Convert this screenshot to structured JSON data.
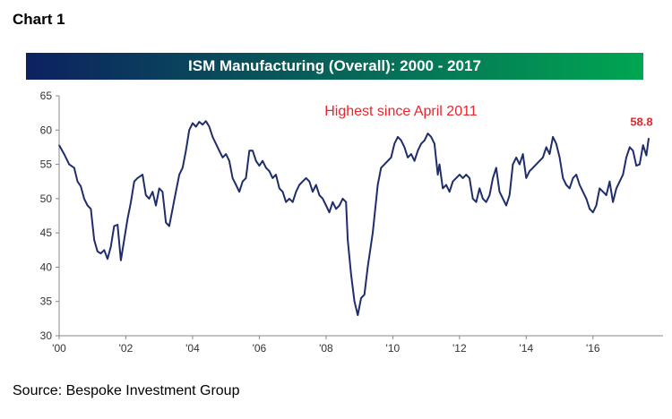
{
  "header": {
    "chart_label": "Chart 1"
  },
  "footer": {
    "source": "Source: Bespoke Investment Group"
  },
  "colors": {
    "title_bar_start": "#0d2160",
    "title_bar_end": "#00a651",
    "line": "#1f2d6b",
    "annotation": "#e8262b",
    "axis": "#888888"
  },
  "chart_data": {
    "type": "line",
    "title": "ISM Manufacturing (Overall): 2000 - 2017",
    "xlabel": "",
    "ylabel": "",
    "ylim": [
      30,
      65
    ],
    "xlim": [
      2000,
      2018.1
    ],
    "y_ticks": [
      30,
      35,
      40,
      45,
      50,
      55,
      60,
      65
    ],
    "x_ticks": [
      {
        "x": 2000,
        "label": "'00"
      },
      {
        "x": 2002,
        "label": "'02"
      },
      {
        "x": 2004,
        "label": "'04"
      },
      {
        "x": 2006,
        "label": "'06"
      },
      {
        "x": 2008,
        "label": "'08"
      },
      {
        "x": 2010,
        "label": "'10"
      },
      {
        "x": 2012,
        "label": "'12"
      },
      {
        "x": 2014,
        "label": "'14"
      },
      {
        "x": 2016,
        "label": "'16"
      }
    ],
    "grid": false,
    "series": [
      {
        "points": [
          [
            2000.0,
            57.8
          ],
          [
            2000.15,
            56.5
          ],
          [
            2000.3,
            55.0
          ],
          [
            2000.45,
            54.5
          ],
          [
            2000.55,
            52.5
          ],
          [
            2000.65,
            51.8
          ],
          [
            2000.75,
            50.0
          ],
          [
            2000.85,
            49.0
          ],
          [
            2000.95,
            48.5
          ],
          [
            2001.05,
            44.0
          ],
          [
            2001.15,
            42.3
          ],
          [
            2001.25,
            42.0
          ],
          [
            2001.35,
            42.5
          ],
          [
            2001.45,
            41.2
          ],
          [
            2001.55,
            43.0
          ],
          [
            2001.65,
            46.0
          ],
          [
            2001.75,
            46.2
          ],
          [
            2001.85,
            41.0
          ],
          [
            2001.95,
            44.0
          ],
          [
            2002.05,
            47.0
          ],
          [
            2002.15,
            49.5
          ],
          [
            2002.25,
            52.5
          ],
          [
            2002.35,
            53.0
          ],
          [
            2002.5,
            53.5
          ],
          [
            2002.6,
            50.5
          ],
          [
            2002.7,
            50.0
          ],
          [
            2002.8,
            51.0
          ],
          [
            2002.9,
            49.0
          ],
          [
            2003.0,
            51.5
          ],
          [
            2003.1,
            51.0
          ],
          [
            2003.2,
            46.5
          ],
          [
            2003.3,
            46.0
          ],
          [
            2003.4,
            48.5
          ],
          [
            2003.5,
            51.0
          ],
          [
            2003.6,
            53.5
          ],
          [
            2003.7,
            54.5
          ],
          [
            2003.8,
            57.0
          ],
          [
            2003.9,
            60.0
          ],
          [
            2004.0,
            61.0
          ],
          [
            2004.1,
            60.5
          ],
          [
            2004.2,
            61.2
          ],
          [
            2004.3,
            60.8
          ],
          [
            2004.4,
            61.3
          ],
          [
            2004.5,
            60.5
          ],
          [
            2004.6,
            59.0
          ],
          [
            2004.7,
            58.0
          ],
          [
            2004.8,
            57.0
          ],
          [
            2004.9,
            56.0
          ],
          [
            2005.0,
            56.5
          ],
          [
            2005.1,
            55.5
          ],
          [
            2005.2,
            53.0
          ],
          [
            2005.3,
            52.0
          ],
          [
            2005.4,
            51.0
          ],
          [
            2005.5,
            52.5
          ],
          [
            2005.6,
            53.0
          ],
          [
            2005.7,
            57.0
          ],
          [
            2005.8,
            57.0
          ],
          [
            2005.9,
            55.5
          ],
          [
            2006.0,
            54.8
          ],
          [
            2006.1,
            55.5
          ],
          [
            2006.2,
            54.5
          ],
          [
            2006.3,
            54.0
          ],
          [
            2006.4,
            53.0
          ],
          [
            2006.5,
            53.5
          ],
          [
            2006.6,
            51.5
          ],
          [
            2006.7,
            51.0
          ],
          [
            2006.8,
            49.5
          ],
          [
            2006.9,
            50.0
          ],
          [
            2007.0,
            49.5
          ],
          [
            2007.1,
            51.0
          ],
          [
            2007.2,
            52.0
          ],
          [
            2007.3,
            52.5
          ],
          [
            2007.4,
            53.0
          ],
          [
            2007.5,
            52.5
          ],
          [
            2007.6,
            51.0
          ],
          [
            2007.7,
            52.0
          ],
          [
            2007.8,
            50.5
          ],
          [
            2007.9,
            50.0
          ],
          [
            2008.0,
            49.0
          ],
          [
            2008.1,
            48.0
          ],
          [
            2008.2,
            49.5
          ],
          [
            2008.3,
            48.5
          ],
          [
            2008.4,
            49.0
          ],
          [
            2008.5,
            50.0
          ],
          [
            2008.6,
            49.5
          ],
          [
            2008.65,
            44.0
          ],
          [
            2008.75,
            39.0
          ],
          [
            2008.85,
            35.0
          ],
          [
            2008.95,
            33.0
          ],
          [
            2009.05,
            35.5
          ],
          [
            2009.15,
            36.0
          ],
          [
            2009.25,
            40.0
          ],
          [
            2009.4,
            45.0
          ],
          [
            2009.55,
            52.0
          ],
          [
            2009.65,
            54.5
          ],
          [
            2009.75,
            55.0
          ],
          [
            2009.85,
            55.5
          ],
          [
            2009.95,
            56.0
          ],
          [
            2010.05,
            58.0
          ],
          [
            2010.15,
            59.0
          ],
          [
            2010.25,
            58.5
          ],
          [
            2010.35,
            57.5
          ],
          [
            2010.45,
            56.0
          ],
          [
            2010.55,
            56.5
          ],
          [
            2010.65,
            55.5
          ],
          [
            2010.75,
            57.0
          ],
          [
            2010.85,
            58.0
          ],
          [
            2010.95,
            58.5
          ],
          [
            2011.05,
            59.5
          ],
          [
            2011.15,
            59.0
          ],
          [
            2011.25,
            58.0
          ],
          [
            2011.35,
            53.5
          ],
          [
            2011.4,
            55.0
          ],
          [
            2011.5,
            51.5
          ],
          [
            2011.6,
            52.0
          ],
          [
            2011.7,
            51.0
          ],
          [
            2011.8,
            52.5
          ],
          [
            2011.9,
            53.0
          ],
          [
            2012.0,
            53.5
          ],
          [
            2012.1,
            53.0
          ],
          [
            2012.2,
            53.5
          ],
          [
            2012.3,
            53.0
          ],
          [
            2012.4,
            50.0
          ],
          [
            2012.5,
            49.5
          ],
          [
            2012.6,
            51.5
          ],
          [
            2012.7,
            50.0
          ],
          [
            2012.8,
            49.5
          ],
          [
            2012.9,
            50.5
          ],
          [
            2013.0,
            53.0
          ],
          [
            2013.1,
            54.5
          ],
          [
            2013.2,
            51.0
          ],
          [
            2013.3,
            50.0
          ],
          [
            2013.4,
            49.0
          ],
          [
            2013.5,
            50.5
          ],
          [
            2013.6,
            55.0
          ],
          [
            2013.7,
            56.0
          ],
          [
            2013.8,
            55.0
          ],
          [
            2013.9,
            56.5
          ],
          [
            2014.0,
            53.0
          ],
          [
            2014.1,
            54.0
          ],
          [
            2014.2,
            54.5
          ],
          [
            2014.3,
            55.0
          ],
          [
            2014.4,
            55.5
          ],
          [
            2014.5,
            56.0
          ],
          [
            2014.6,
            57.5
          ],
          [
            2014.7,
            56.5
          ],
          [
            2014.8,
            59.0
          ],
          [
            2014.9,
            58.0
          ],
          [
            2015.0,
            56.0
          ],
          [
            2015.1,
            53.0
          ],
          [
            2015.2,
            52.0
          ],
          [
            2015.3,
            51.5
          ],
          [
            2015.4,
            53.0
          ],
          [
            2015.5,
            53.5
          ],
          [
            2015.6,
            52.0
          ],
          [
            2015.7,
            51.0
          ],
          [
            2015.8,
            50.0
          ],
          [
            2015.9,
            48.5
          ],
          [
            2016.0,
            48.0
          ],
          [
            2016.1,
            49.0
          ],
          [
            2016.2,
            51.5
          ],
          [
            2016.3,
            51.0
          ],
          [
            2016.4,
            50.5
          ],
          [
            2016.5,
            52.5
          ],
          [
            2016.6,
            49.5
          ],
          [
            2016.7,
            51.5
          ],
          [
            2016.8,
            52.5
          ],
          [
            2016.9,
            53.5
          ],
          [
            2017.0,
            56.0
          ],
          [
            2017.1,
            57.5
          ],
          [
            2017.2,
            57.0
          ],
          [
            2017.3,
            54.8
          ],
          [
            2017.4,
            55.0
          ],
          [
            2017.5,
            57.8
          ],
          [
            2017.6,
            56.3
          ],
          [
            2017.67,
            58.8
          ]
        ]
      }
    ],
    "annotations": [
      {
        "text": "Highest since April 2011",
        "x": 2011.05,
        "y": 59.5
      },
      {
        "text": "58.8",
        "x": 2017.67,
        "y": 58.8
      }
    ]
  }
}
